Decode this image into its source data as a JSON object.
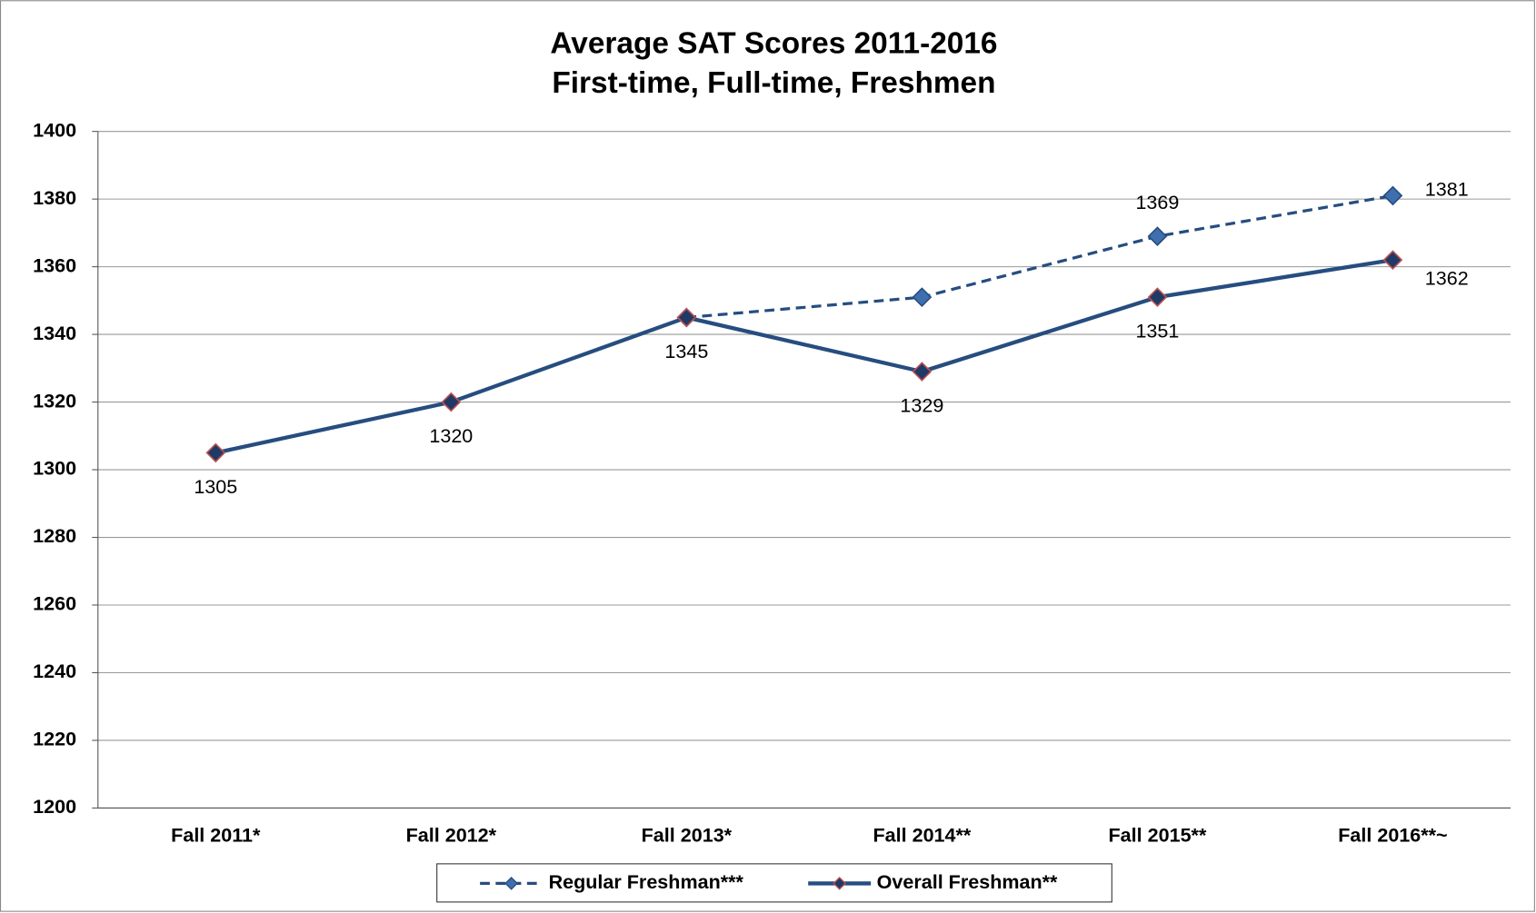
{
  "chart_data": {
    "type": "line",
    "title": "Average SAT Scores 2011-2016",
    "subtitle": "First-time, Full-time, Freshmen",
    "categories": [
      "Fall 2011*",
      "Fall 2012*",
      "Fall 2013*",
      "Fall 2014**",
      "Fall 2015**",
      "Fall 2016**~"
    ],
    "series": [
      {
        "name": "Regular Freshman***",
        "color": "#264d7f",
        "marker_color": "#3f6fae",
        "marker_edge": "#264d7f",
        "dashed": true,
        "values": [
          null,
          null,
          1345,
          1351,
          1369,
          1381
        ],
        "value_labels": [
          null,
          null,
          null,
          null,
          "1369",
          "1381"
        ]
      },
      {
        "name": "Overall Freshman**",
        "color": "#264d7f",
        "marker_color": "#1f3a66",
        "marker_edge": "#c0504d",
        "dashed": false,
        "values": [
          1305,
          1320,
          1345,
          1329,
          1351,
          1362
        ],
        "value_labels": [
          "1305",
          "1320",
          "1345",
          "1329",
          "1351",
          "1362"
        ]
      }
    ],
    "ylim": [
      1200,
      1400
    ],
    "yticks": [
      1200,
      1220,
      1240,
      1260,
      1280,
      1300,
      1320,
      1340,
      1360,
      1380,
      1400
    ],
    "grid": true,
    "legend": "bottom"
  }
}
